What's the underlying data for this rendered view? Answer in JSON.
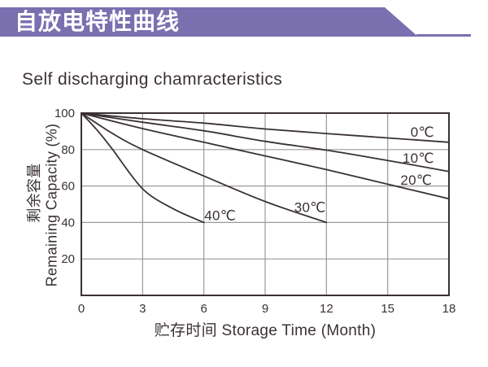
{
  "header": {
    "title": "自放电特性曲线"
  },
  "main": {
    "title": "Self discharging chamracteristics"
  },
  "colors": {
    "accent": "#7a70b0",
    "line": "#3a3135",
    "grid": "#9a9a9a",
    "text": "#3a3135",
    "background": "#ffffff",
    "banner_text": "#ffffff"
  },
  "chart_data": {
    "type": "line",
    "title": "Self discharging chamracteristics",
    "xlabel": "贮存时间 Storage Time (Month)",
    "ylabel_cn": "剩余容量",
    "ylabel_en": "Remaining Capacity (%)",
    "xlim": [
      0,
      18
    ],
    "ylim": [
      0,
      100
    ],
    "x_ticks": [
      0,
      3,
      6,
      9,
      12,
      15,
      18
    ],
    "y_ticks": [
      20,
      40,
      60,
      80,
      100
    ],
    "grid": true,
    "legend_position": "inline-labels",
    "series": [
      {
        "name": "temp-0c",
        "label": "0℃",
        "points": [
          [
            0,
            100
          ],
          [
            3,
            96.9
          ],
          [
            6,
            94.5
          ],
          [
            9,
            91.3
          ],
          [
            12,
            88.8
          ],
          [
            15,
            86.4
          ],
          [
            18,
            84
          ]
        ],
        "label_anchor": [
          16.7,
          89.7
        ]
      },
      {
        "name": "temp-10c",
        "label": "10℃",
        "points": [
          [
            0,
            100
          ],
          [
            3,
            95
          ],
          [
            6,
            90.3
          ],
          [
            9,
            84.5
          ],
          [
            12,
            79.7
          ],
          [
            15,
            74
          ],
          [
            18,
            68
          ]
        ],
        "label_anchor": [
          16.5,
          75.5
        ]
      },
      {
        "name": "temp-20c",
        "label": "20℃",
        "points": [
          [
            0,
            100
          ],
          [
            3,
            91.5
          ],
          [
            6,
            84
          ],
          [
            9,
            76.5
          ],
          [
            12,
            69
          ],
          [
            15,
            61
          ],
          [
            18,
            53
          ]
        ],
        "label_anchor": [
          16.4,
          63.5
        ]
      },
      {
        "name": "temp-30c",
        "label": "30℃",
        "points": [
          [
            0,
            100
          ],
          [
            1.5,
            89
          ],
          [
            3,
            80
          ],
          [
            6,
            65.5
          ],
          [
            9,
            51.5
          ],
          [
            12,
            40
          ]
        ],
        "label_anchor": [
          11.2,
          48.5
        ]
      },
      {
        "name": "temp-40c",
        "label": "40℃",
        "points": [
          [
            0,
            100
          ],
          [
            0.75,
            91
          ],
          [
            1.5,
            80.5
          ],
          [
            3,
            58.5
          ],
          [
            4.5,
            47.5
          ],
          [
            6,
            40
          ]
        ],
        "label_anchor": [
          6.8,
          44
        ]
      }
    ]
  }
}
